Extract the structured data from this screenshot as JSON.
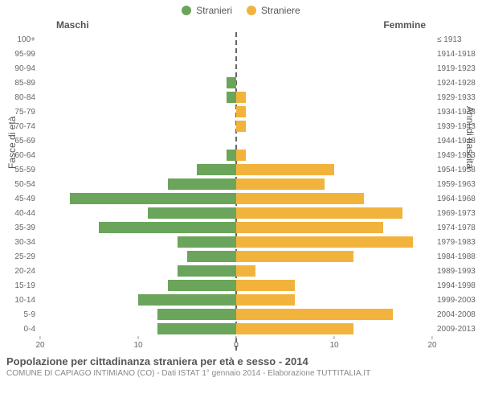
{
  "legend": {
    "male": {
      "label": "Stranieri",
      "color": "#6aa55b"
    },
    "female": {
      "label": "Straniere",
      "color": "#f2b33d"
    }
  },
  "headers": {
    "left": "Maschi",
    "right": "Femmine"
  },
  "y_axis": {
    "left_title": "Fasce di età",
    "right_title": "Anni di nascita",
    "label_fontsize": 10,
    "title_fontsize": 12
  },
  "x_axis": {
    "max": 20,
    "ticks_left": [
      20,
      10,
      0
    ],
    "ticks_right": [
      0,
      10,
      20
    ],
    "tick_fontsize": 10,
    "tick_color": "#666"
  },
  "footer": {
    "title": "Popolazione per cittadinanza straniera per età e sesso - 2014",
    "subtitle": "COMUNE DI CAPIAGO INTIMIANO (CO) - Dati ISTAT 1° gennaio 2014 - Elaborazione TUTTITALIA.IT",
    "title_fontsize": 13,
    "subtitle_fontsize": 10,
    "title_color": "#555555",
    "subtitle_color": "#888888"
  },
  "style": {
    "bar_height_ratio": 0.75,
    "center_line_color": "#666666",
    "center_line_dash": true,
    "background": "#ffffff"
  },
  "rows": [
    {
      "age": "100+",
      "birth": "≤ 1913",
      "m": 0,
      "f": 0
    },
    {
      "age": "95-99",
      "birth": "1914-1918",
      "m": 0,
      "f": 0
    },
    {
      "age": "90-94",
      "birth": "1919-1923",
      "m": 0,
      "f": 0
    },
    {
      "age": "85-89",
      "birth": "1924-1928",
      "m": 1,
      "f": 0
    },
    {
      "age": "80-84",
      "birth": "1929-1933",
      "m": 1,
      "f": 1
    },
    {
      "age": "75-79",
      "birth": "1934-1938",
      "m": 0,
      "f": 1
    },
    {
      "age": "70-74",
      "birth": "1939-1943",
      "m": 0,
      "f": 1
    },
    {
      "age": "65-69",
      "birth": "1944-1948",
      "m": 0,
      "f": 0
    },
    {
      "age": "60-64",
      "birth": "1949-1953",
      "m": 1,
      "f": 1
    },
    {
      "age": "55-59",
      "birth": "1954-1958",
      "m": 4,
      "f": 10
    },
    {
      "age": "50-54",
      "birth": "1959-1963",
      "m": 7,
      "f": 9
    },
    {
      "age": "45-49",
      "birth": "1964-1968",
      "m": 17,
      "f": 13
    },
    {
      "age": "40-44",
      "birth": "1969-1973",
      "m": 9,
      "f": 17
    },
    {
      "age": "35-39",
      "birth": "1974-1978",
      "m": 14,
      "f": 15
    },
    {
      "age": "30-34",
      "birth": "1979-1983",
      "m": 6,
      "f": 18
    },
    {
      "age": "25-29",
      "birth": "1984-1988",
      "m": 5,
      "f": 12
    },
    {
      "age": "20-24",
      "birth": "1989-1993",
      "m": 6,
      "f": 2
    },
    {
      "age": "15-19",
      "birth": "1994-1998",
      "m": 7,
      "f": 6
    },
    {
      "age": "10-14",
      "birth": "1999-2003",
      "m": 10,
      "f": 6
    },
    {
      "age": "5-9",
      "birth": "2004-2008",
      "m": 8,
      "f": 16
    },
    {
      "age": "0-4",
      "birth": "2009-2013",
      "m": 8,
      "f": 12
    }
  ]
}
